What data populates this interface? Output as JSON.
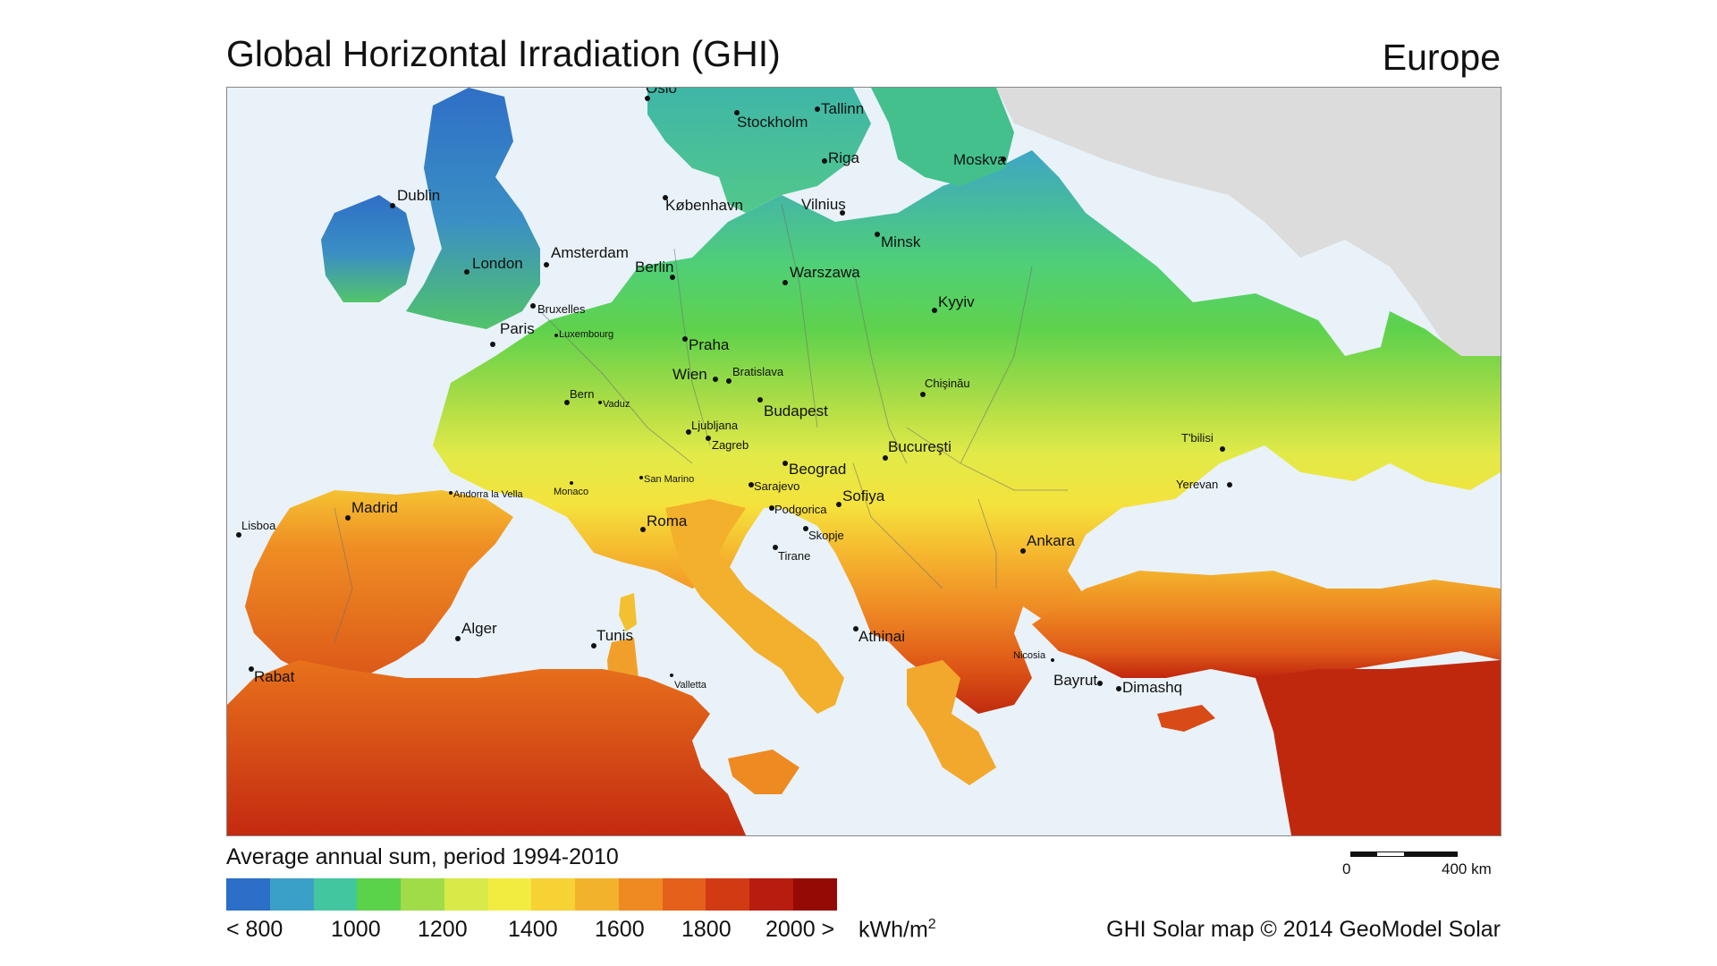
{
  "title": "Global Horizontal Irradiation (GHI)",
  "region": "Europe",
  "subtitle": "Average annual sum, period 1994-2010",
  "legend": {
    "colors": [
      "#2b6fc8",
      "#3ba0c8",
      "#42c6a0",
      "#5ad24a",
      "#9fdc48",
      "#d7ea48",
      "#f3ec40",
      "#f6d234",
      "#f3b22c",
      "#ef8a22",
      "#e5601a",
      "#d23a14",
      "#b81c0e",
      "#960a06"
    ],
    "labels": [
      "< 800",
      "1000",
      "1200",
      "1400",
      "1600",
      "1800",
      "2000 >"
    ],
    "unit": "kWh/m",
    "unit_sup": "2"
  },
  "scale": {
    "zero": "0",
    "end": "400 km"
  },
  "credit": "GHI Solar map © 2014 GeoModel Solar",
  "cities": [
    {
      "name": "Oslo",
      "size": "big"
    },
    {
      "name": "Stockholm",
      "size": "big"
    },
    {
      "name": "Tallinn",
      "size": "big"
    },
    {
      "name": "Riga",
      "size": "big"
    },
    {
      "name": "Moskva",
      "size": "big"
    },
    {
      "name": "Dublin",
      "size": "big"
    },
    {
      "name": "København",
      "size": "big"
    },
    {
      "name": "Vilnius",
      "size": "big"
    },
    {
      "name": "Minsk",
      "size": "big"
    },
    {
      "name": "London",
      "size": "big"
    },
    {
      "name": "Amsterdam",
      "size": "big"
    },
    {
      "name": "Berlin",
      "size": "big"
    },
    {
      "name": "Warszawa",
      "size": "big"
    },
    {
      "name": "Kyyiv",
      "size": "big"
    },
    {
      "name": "Bruxelles",
      "size": "small"
    },
    {
      "name": "Paris",
      "size": "big"
    },
    {
      "name": "Luxembourg",
      "size": "tiny"
    },
    {
      "name": "Praha",
      "size": "big"
    },
    {
      "name": "Wien",
      "size": "big"
    },
    {
      "name": "Bratislava",
      "size": "small"
    },
    {
      "name": "Chişinău",
      "size": "small"
    },
    {
      "name": "Bern",
      "size": "small"
    },
    {
      "name": "Vaduz",
      "size": "tiny"
    },
    {
      "name": "Budapest",
      "size": "big"
    },
    {
      "name": "Ljubljana",
      "size": "small"
    },
    {
      "name": "Zagreb",
      "size": "small"
    },
    {
      "name": "Bucureşti",
      "size": "big"
    },
    {
      "name": "T'bilisi",
      "size": "small"
    },
    {
      "name": "Beograd",
      "size": "big"
    },
    {
      "name": "Andorra la Vella",
      "size": "tiny"
    },
    {
      "name": "Monaco",
      "size": "tiny"
    },
    {
      "name": "San Marino",
      "size": "tiny"
    },
    {
      "name": "Sarajevo",
      "size": "small"
    },
    {
      "name": "Yerevan",
      "size": "small"
    },
    {
      "name": "Madrid",
      "size": "big"
    },
    {
      "name": "Podgorica",
      "size": "small"
    },
    {
      "name": "Sofiya",
      "size": "big"
    },
    {
      "name": "Lisboa",
      "size": "small"
    },
    {
      "name": "Roma",
      "size": "big"
    },
    {
      "name": "Skopje",
      "size": "small"
    },
    {
      "name": "Ankara",
      "size": "big"
    },
    {
      "name": "Tirane",
      "size": "small"
    },
    {
      "name": "Alger",
      "size": "big"
    },
    {
      "name": "Tunis",
      "size": "big"
    },
    {
      "name": "Athinai",
      "size": "big"
    },
    {
      "name": "Rabat",
      "size": "big"
    },
    {
      "name": "Nicosia",
      "size": "tiny"
    },
    {
      "name": "Valletta",
      "size": "tiny"
    },
    {
      "name": "Bayrut",
      "size": "big"
    },
    {
      "name": "Dimashq",
      "size": "big"
    }
  ]
}
